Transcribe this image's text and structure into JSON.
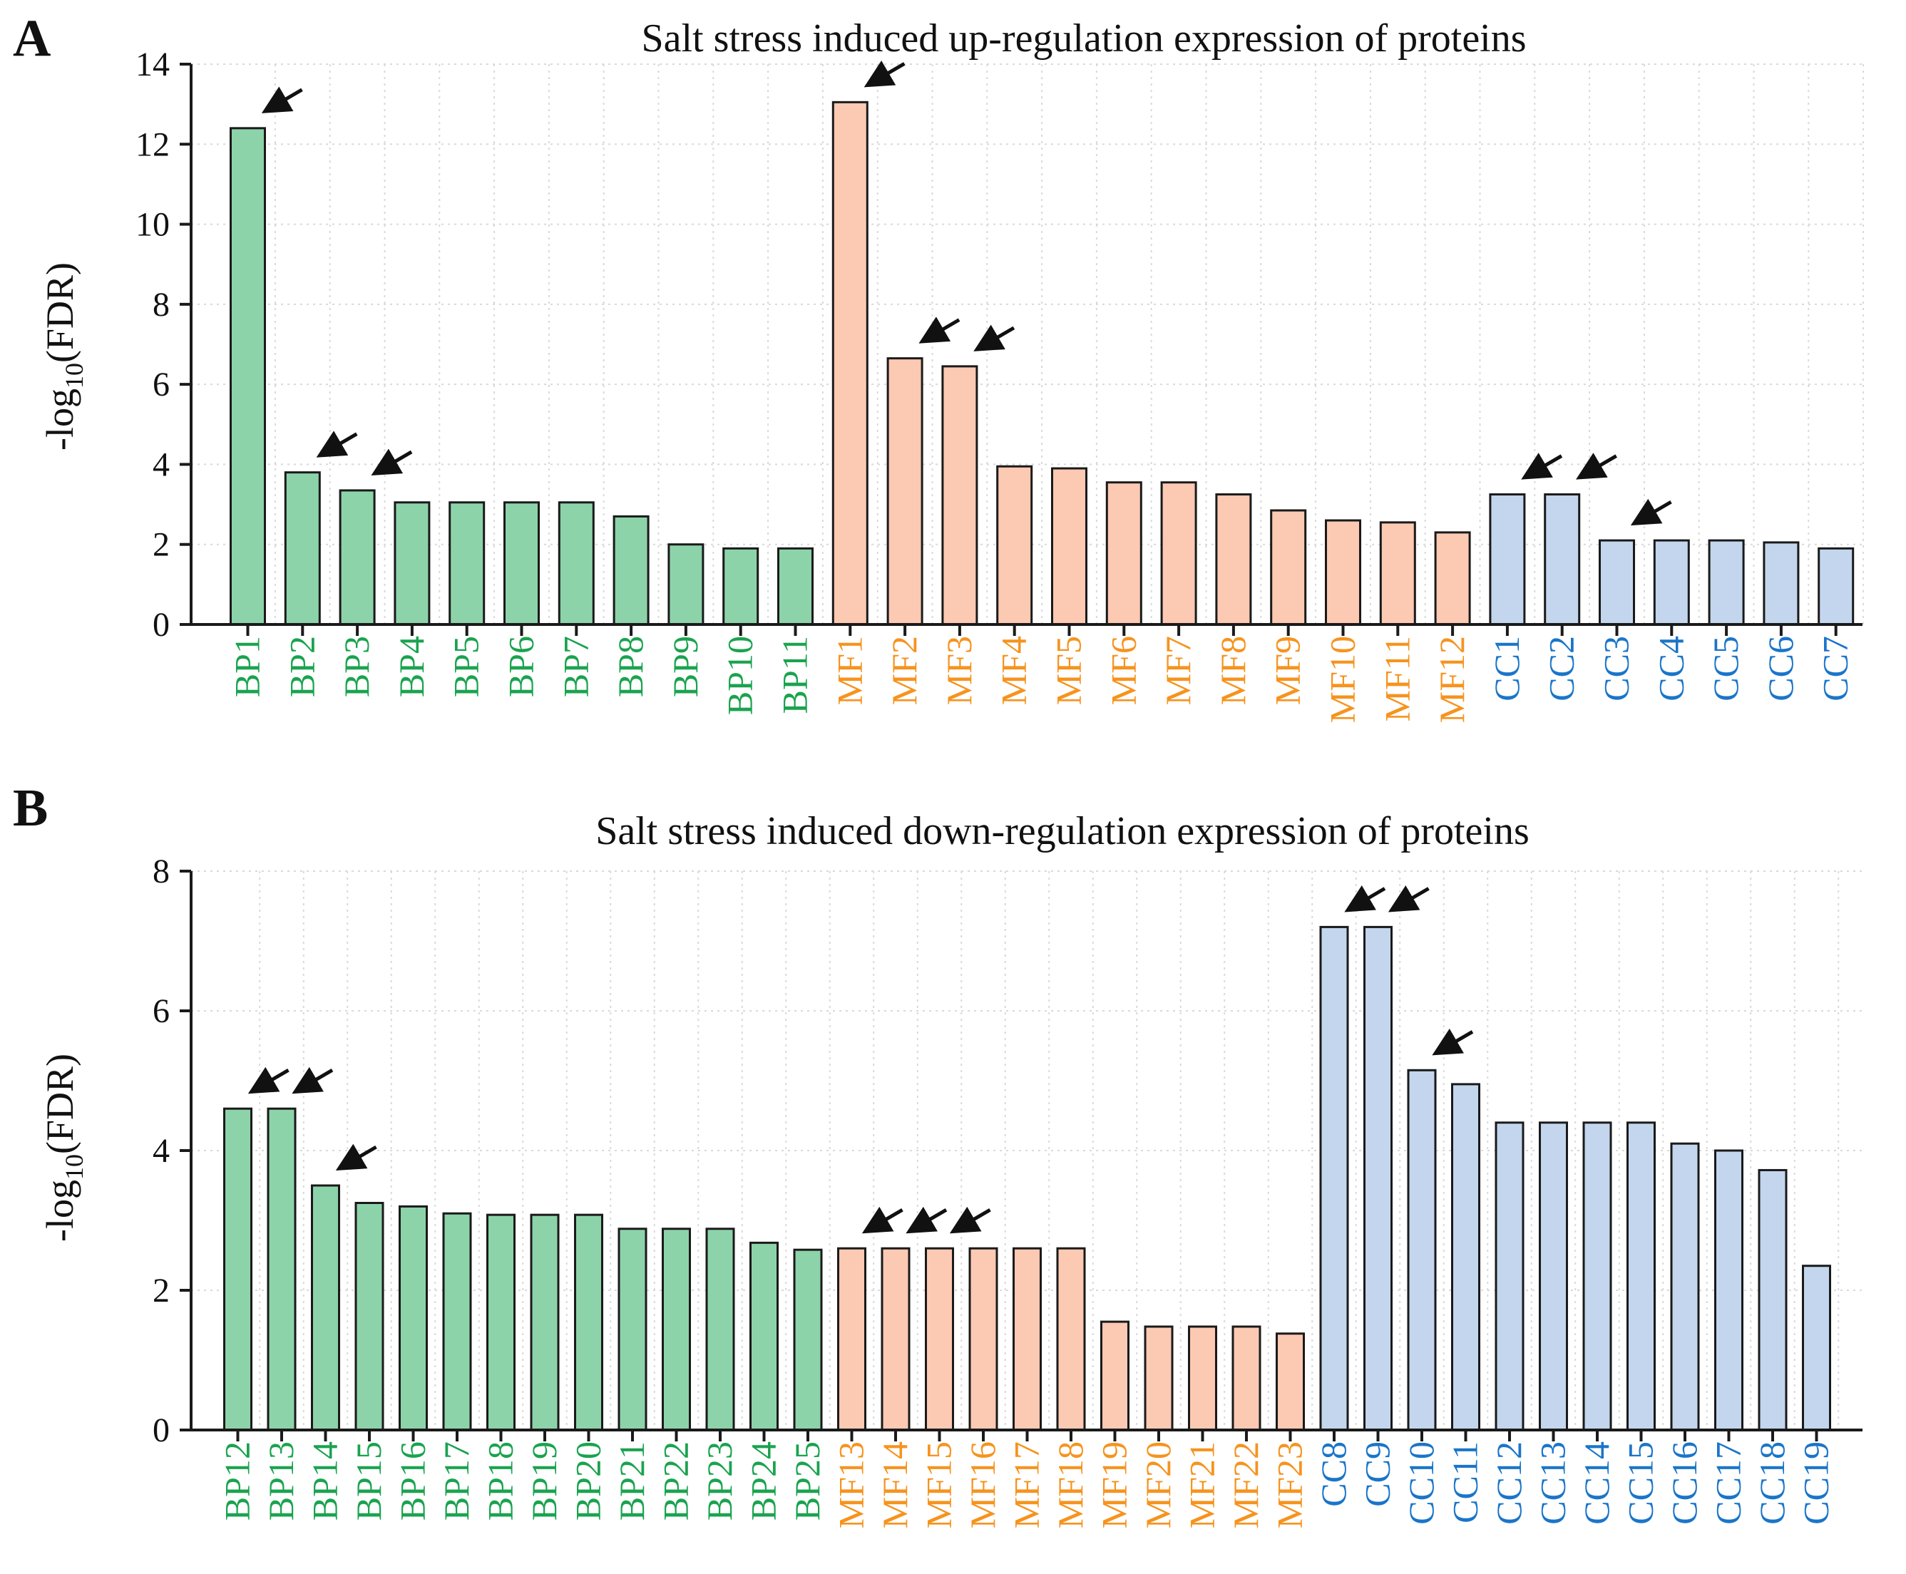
{
  "chart_data": [
    {
      "type": "bar",
      "panel_label": "A",
      "title": "Salt stress induced up-regulation expression of proteins",
      "ylabel_main": "-log",
      "ylabel_sub": "10",
      "ylabel_tail": "(FDR)",
      "ylim": [
        0,
        14
      ],
      "yticks": [
        "0",
        "2",
        "4",
        "6",
        "8",
        "10",
        "12",
        "14"
      ],
      "grid": true,
      "categories": [
        "BP1",
        "BP2",
        "BP3",
        "BP4",
        "BP5",
        "BP6",
        "BP7",
        "BP8",
        "BP9",
        "BP10",
        "BP11",
        "MF1",
        "MF2",
        "MF3",
        "MF4",
        "MF5",
        "MF6",
        "MF7",
        "MF8",
        "MF9",
        "MF10",
        "MF11",
        "MF12",
        "CC1",
        "CC2",
        "CC3",
        "CC4",
        "CC5",
        "CC6",
        "CC7"
      ],
      "values": [
        12.4,
        3.8,
        3.35,
        3.05,
        3.05,
        3.05,
        3.05,
        2.7,
        2.0,
        1.9,
        1.9,
        13.05,
        6.65,
        6.45,
        3.95,
        3.9,
        3.55,
        3.55,
        3.25,
        2.85,
        2.6,
        2.55,
        2.3,
        3.25,
        3.25,
        2.1,
        2.1,
        2.1,
        2.05,
        1.9
      ],
      "groups": [
        "BP",
        "BP",
        "BP",
        "BP",
        "BP",
        "BP",
        "BP",
        "BP",
        "BP",
        "BP",
        "BP",
        "MF",
        "MF",
        "MF",
        "MF",
        "MF",
        "MF",
        "MF",
        "MF",
        "MF",
        "MF",
        "MF",
        "MF",
        "CC",
        "CC",
        "CC",
        "CC",
        "CC",
        "CC",
        "CC"
      ],
      "arrows": [
        "BP1",
        "BP2",
        "BP3",
        "MF1",
        "MF2",
        "MF3",
        "CC1",
        "CC2",
        "CC3"
      ]
    },
    {
      "type": "bar",
      "panel_label": "B",
      "title": "Salt stress induced down-regulation expression of proteins",
      "ylabel_main": "-log",
      "ylabel_sub": "10",
      "ylabel_tail": "(FDR)",
      "ylim": [
        0,
        8
      ],
      "yticks": [
        "0",
        "2",
        "4",
        "6",
        "8"
      ],
      "grid": true,
      "categories": [
        "BP12",
        "BP13",
        "BP14",
        "BP15",
        "BP16",
        "BP17",
        "BP18",
        "BP19",
        "BP20",
        "BP21",
        "BP22",
        "BP23",
        "BP24",
        "BP25",
        "MF13",
        "MF14",
        "MF15",
        "MF16",
        "MF17",
        "MF18",
        "MF19",
        "MF20",
        "MF21",
        "MF22",
        "MF23",
        "CC8",
        "CC9",
        "CC10",
        "CC11",
        "CC12",
        "CC13",
        "CC14",
        "CC15",
        "CC16",
        "CC17",
        "CC18",
        "CC19"
      ],
      "values": [
        4.6,
        4.6,
        3.5,
        3.25,
        3.2,
        3.1,
        3.08,
        3.08,
        3.08,
        2.88,
        2.88,
        2.88,
        2.68,
        2.58,
        2.6,
        2.6,
        2.6,
        2.6,
        2.6,
        2.6,
        1.55,
        1.48,
        1.48,
        1.48,
        1.38,
        7.2,
        7.2,
        5.15,
        4.95,
        4.4,
        4.4,
        4.4,
        4.4,
        4.1,
        4.0,
        3.72,
        2.35
      ],
      "groups": [
        "BP",
        "BP",
        "BP",
        "BP",
        "BP",
        "BP",
        "BP",
        "BP",
        "BP",
        "BP",
        "BP",
        "BP",
        "BP",
        "BP",
        "MF",
        "MF",
        "MF",
        "MF",
        "MF",
        "MF",
        "MF",
        "MF",
        "MF",
        "MF",
        "MF",
        "CC",
        "CC",
        "CC",
        "CC",
        "CC",
        "CC",
        "CC",
        "CC",
        "CC",
        "CC",
        "CC",
        "CC"
      ],
      "arrows": [
        "BP12",
        "BP13",
        "BP14",
        "MF13",
        "MF14",
        "MF15",
        "CC8",
        "CC9",
        "CC10"
      ]
    }
  ],
  "colors": {
    "BP_fill": "#8dd3aa",
    "MF_fill": "#fcc9b3",
    "CC_fill": "#c3d6ee",
    "BP_text": "#1aa34f",
    "MF_text": "#f6931e",
    "CC_text": "#1a75c9",
    "axis": "#1a1a1a",
    "grid": "#d9d9d9"
  }
}
